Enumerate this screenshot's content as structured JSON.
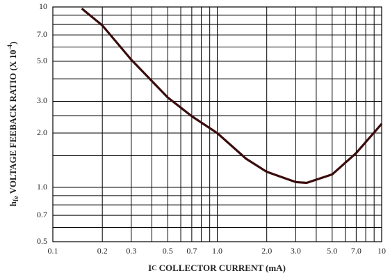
{
  "chart_data": {
    "type": "line",
    "log_x": true,
    "log_y": true,
    "grid": true,
    "x_label": {
      "main": "I",
      "subscript": "C",
      "text": " COLLECTOR CURRENT (mA)"
    },
    "y_label": {
      "main": "h",
      "subscript": "fe",
      "text": " VOLTAGE FEEBACK RATIO (X 10",
      "superscript": "-4",
      "end": ")"
    },
    "xlim": [
      0.1,
      10
    ],
    "ylim": [
      0.5,
      10
    ],
    "xticks": [
      0.1,
      0.2,
      0.3,
      0.5,
      0.7,
      {
        "value": 1,
        "label": "1.0"
      },
      {
        "value": 2,
        "label": "2.0"
      },
      {
        "value": 3,
        "label": "3.0"
      },
      {
        "value": 5,
        "label": "5.0"
      },
      {
        "value": 7,
        "label": "7.0"
      },
      10
    ],
    "yticks": [
      0.5,
      0.7,
      {
        "value": 1,
        "label": "1.0"
      },
      {
        "value": 2,
        "label": "2.0"
      },
      {
        "value": 3,
        "label": "3.0"
      },
      {
        "value": 5,
        "label": "5.0"
      },
      {
        "value": 7,
        "label": "7.0"
      },
      10
    ],
    "xminor_ticks": [
      0.4,
      0.6,
      0.8,
      0.9,
      4,
      6,
      8,
      9
    ],
    "yminor_ticks": [
      0.6,
      0.8,
      0.9,
      1.5,
      2.5,
      4,
      6,
      8,
      9
    ],
    "series": [
      {
        "color": "#3a0c0c",
        "x": [
          0.15,
          0.2,
          0.3,
          0.5,
          0.7,
          1.0,
          1.5,
          2.0,
          3.0,
          3.5,
          5.0,
          7.0,
          10
        ],
        "values": [
          9.8,
          7.9,
          5.1,
          3.15,
          2.48,
          2.0,
          1.44,
          1.22,
          1.07,
          1.06,
          1.18,
          1.55,
          2.25
        ]
      }
    ]
  }
}
